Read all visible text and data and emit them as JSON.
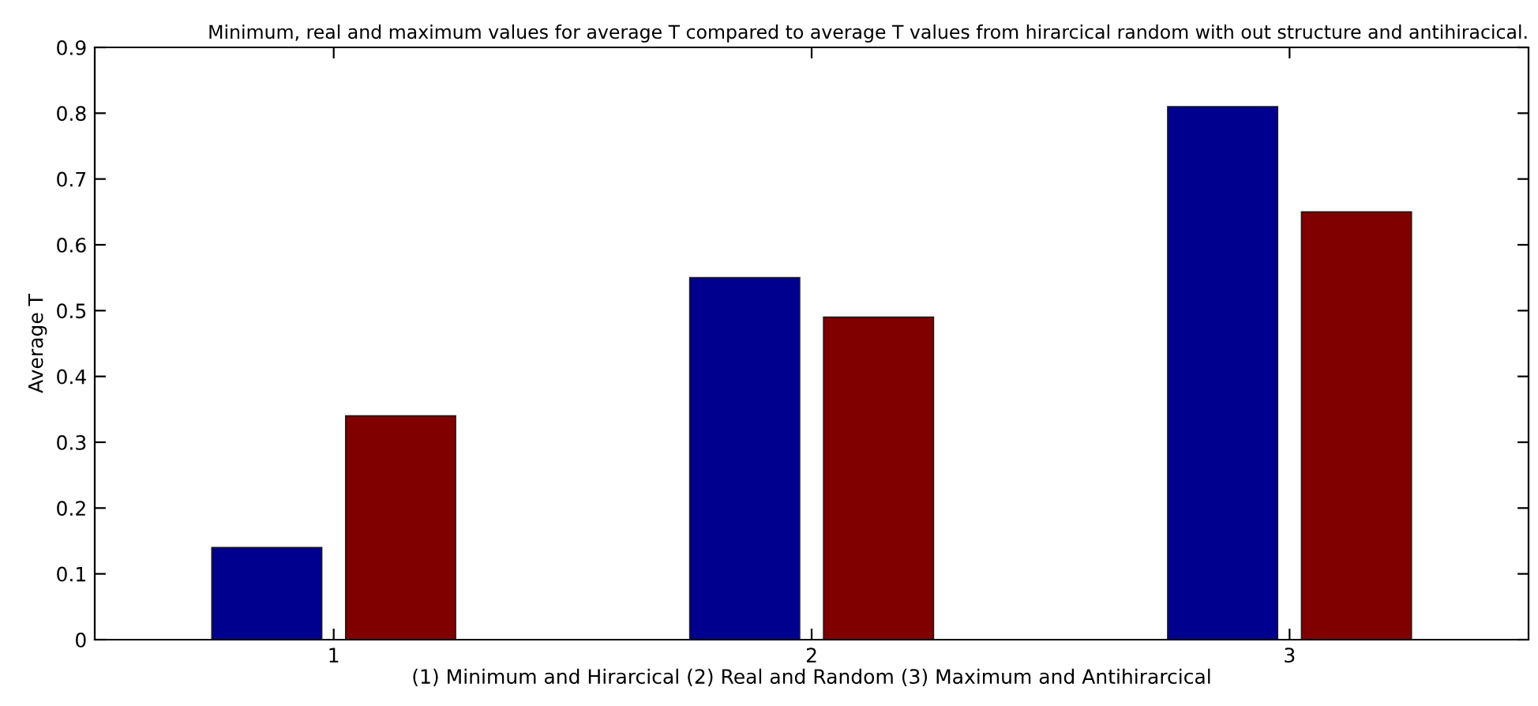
{
  "chart_data": {
    "type": "bar",
    "title": "Minimum, real and maximum values for average T compared to average T values from hirarcical random with out structure and antihiracical.",
    "xlabel": "(1) Minimum and Hirarcical (2) Real and Random (3) Maximum and Antihirarcical",
    "ylabel": "Average T",
    "categories": [
      "1",
      "2",
      "3"
    ],
    "series": [
      {
        "color": "#00008f",
        "values": [
          0.14,
          0.55,
          0.81
        ]
      },
      {
        "color": "#800000",
        "values": [
          0.34,
          0.49,
          0.65
        ]
      }
    ],
    "ylim": [
      0,
      0.9
    ],
    "yticks": [
      0,
      0.1,
      0.2,
      0.3,
      0.4,
      0.5,
      0.6,
      0.7,
      0.8,
      0.9
    ],
    "grid": false,
    "legend": false
  }
}
